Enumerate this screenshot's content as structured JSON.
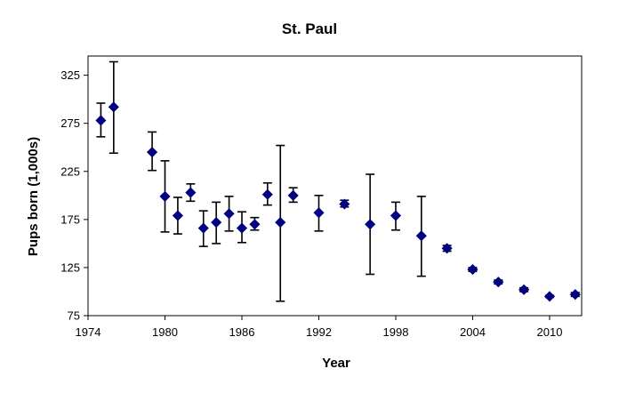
{
  "chart_data": {
    "type": "scatter",
    "title": "St. Paul",
    "xlabel": "Year",
    "ylabel": "Pups born (1,000s)",
    "xlim": [
      1974,
      2012.5
    ],
    "ylim": [
      75,
      345
    ],
    "xticks": [
      1974,
      1980,
      1986,
      1992,
      1998,
      2004,
      2010
    ],
    "yticks": [
      75,
      125,
      175,
      225,
      275,
      325
    ],
    "grid": false,
    "legend": "none",
    "colors": {
      "marker": "#000080",
      "error_bar": "#000000",
      "axis": "#000000"
    },
    "points": [
      {
        "x": 1975,
        "y": 278,
        "low": 261,
        "high": 296
      },
      {
        "x": 1976,
        "y": 292,
        "low": 244,
        "high": 339
      },
      {
        "x": 1979,
        "y": 245,
        "low": 226,
        "high": 266
      },
      {
        "x": 1980,
        "y": 199,
        "low": 162,
        "high": 236
      },
      {
        "x": 1981,
        "y": 179,
        "low": 160,
        "high": 198
      },
      {
        "x": 1982,
        "y": 203,
        "low": 194,
        "high": 212
      },
      {
        "x": 1983,
        "y": 166,
        "low": 147,
        "high": 184
      },
      {
        "x": 1984,
        "y": 172,
        "low": 150,
        "high": 193
      },
      {
        "x": 1985,
        "y": 181,
        "low": 163,
        "high": 199
      },
      {
        "x": 1986,
        "y": 166,
        "low": 151,
        "high": 183
      },
      {
        "x": 1987,
        "y": 170,
        "low": 164,
        "high": 177
      },
      {
        "x": 1988,
        "y": 201,
        "low": 190,
        "high": 213
      },
      {
        "x": 1989,
        "y": 172,
        "low": 90,
        "high": 252
      },
      {
        "x": 1990,
        "y": 200,
        "low": 193,
        "high": 208
      },
      {
        "x": 1992,
        "y": 182,
        "low": 163,
        "high": 200
      },
      {
        "x": 1994,
        "y": 191,
        "low": 188,
        "high": 195
      },
      {
        "x": 1996,
        "y": 170,
        "low": 118,
        "high": 222
      },
      {
        "x": 1998,
        "y": 179,
        "low": 164,
        "high": 193
      },
      {
        "x": 2000,
        "y": 158,
        "low": 116,
        "high": 199
      },
      {
        "x": 2002,
        "y": 145,
        "low": 142,
        "high": 148
      },
      {
        "x": 2004,
        "y": 123,
        "low": 121,
        "high": 125
      },
      {
        "x": 2006,
        "y": 110,
        "low": 108,
        "high": 112
      },
      {
        "x": 2008,
        "y": 102,
        "low": 100,
        "high": 104
      },
      {
        "x": 2010,
        "y": 95,
        "low": 94,
        "high": 96
      },
      {
        "x": 2012,
        "y": 97,
        "low": 95,
        "high": 99
      }
    ]
  }
}
